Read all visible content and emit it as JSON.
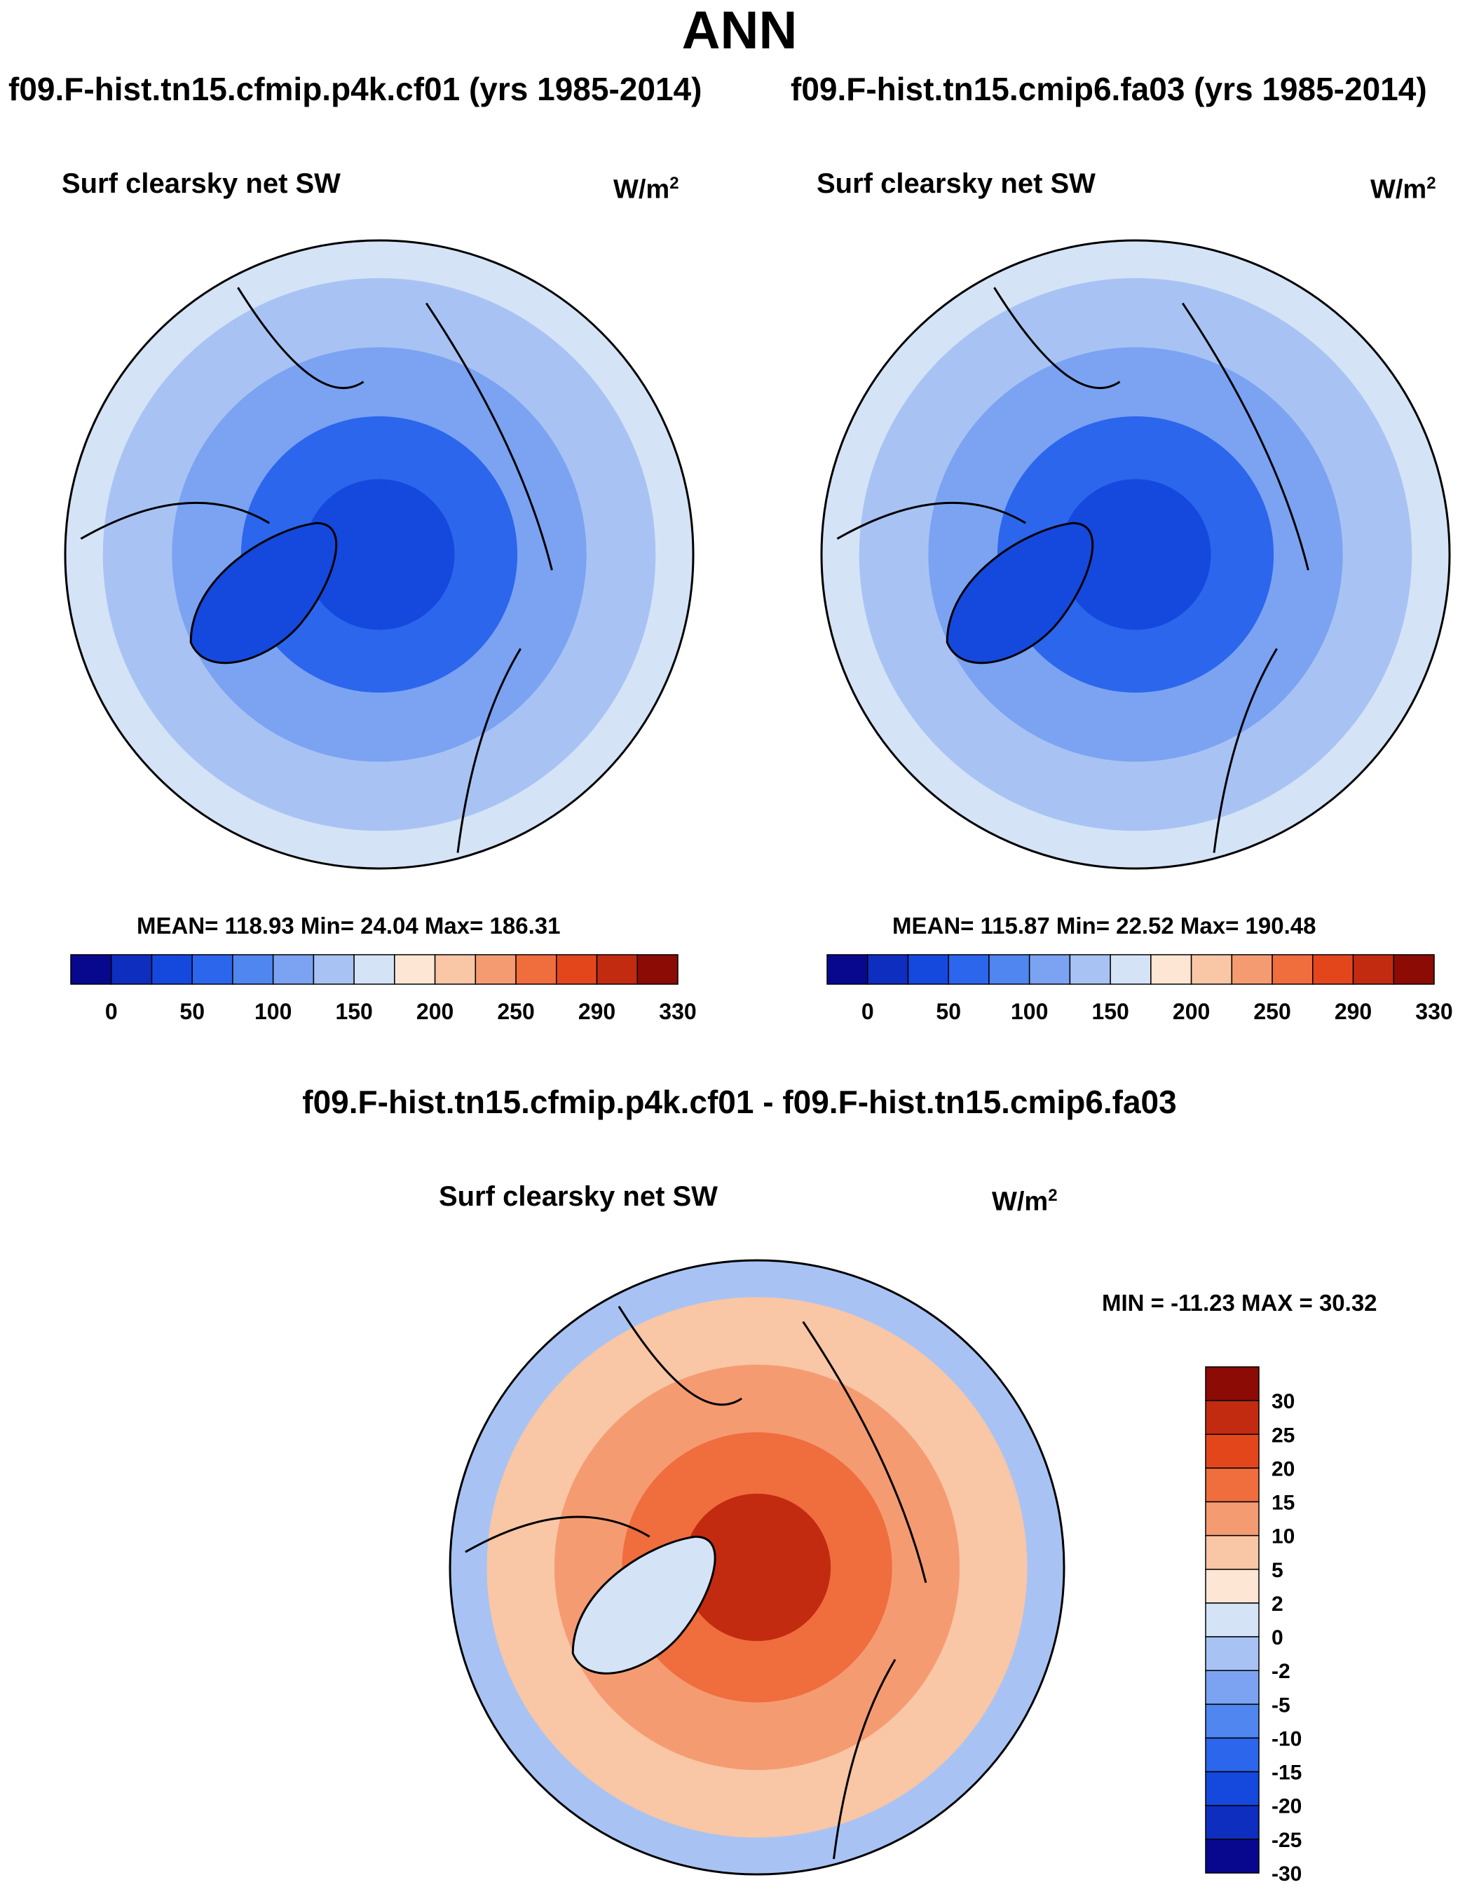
{
  "figure": {
    "title": "ANN",
    "diff_title": "f09.F-hist.tn15.cfmip.p4k.cf01 - f09.F-hist.tn15.cmip6.fa03"
  },
  "palettes": {
    "abs": [
      "#08088f",
      "#0e2ebf",
      "#1549dd",
      "#2c66ec",
      "#4f86f0",
      "#7ba3f2",
      "#a8c3f3",
      "#d4e3f6",
      "#fde6d3",
      "#f9c6a6",
      "#f59b72",
      "#f06d3e",
      "#e4461c",
      "#c22b10",
      "#8c0b05"
    ],
    "diff": [
      "#08088f",
      "#0e2ebf",
      "#1549dd",
      "#2c66ec",
      "#4f86f0",
      "#7ba3f2",
      "#a8c3f3",
      "#d4e3f6",
      "#fde6d3",
      "#f9c6a6",
      "#f59b72",
      "#f06d3e",
      "#e4461c",
      "#c22b10",
      "#8c0b05"
    ]
  },
  "chart_data": [
    {
      "type": "heatmap",
      "projection": "north polar stereographic",
      "case": "f09.F-hist.tn15.cfmip.p4k.cf01 (yrs 1985-2014)",
      "variable": "Surf clearsky net SW",
      "units_base": "W/m",
      "units_exp": "2",
      "stats": "MEAN= 118.93  Min=  24.04  Max= 186.31",
      "mean": 118.93,
      "min": 24.04,
      "max": 186.31,
      "colorbar_ticks": [
        "0",
        "50",
        "100",
        "150",
        "200",
        "250",
        "290",
        "330"
      ],
      "field": {
        "pole": 30,
        "ring1": 70,
        "ring2": 110,
        "ring3": 145,
        "outer": 170,
        "greenland": 45
      }
    },
    {
      "type": "heatmap",
      "projection": "north polar stereographic",
      "case": "f09.F-hist.tn15.cmip6.fa03 (yrs 1985-2014)",
      "variable": "Surf clearsky net SW",
      "units_base": "W/m",
      "units_exp": "2",
      "stats": "MEAN= 115.87  Min=  22.52  Max= 190.48",
      "mean": 115.87,
      "min": 22.52,
      "max": 190.48,
      "colorbar_ticks": [
        "0",
        "50",
        "100",
        "150",
        "200",
        "250",
        "290",
        "330"
      ],
      "field": {
        "pole": 25,
        "ring1": 65,
        "ring2": 105,
        "ring3": 140,
        "outer": 170,
        "greenland": 40
      }
    },
    {
      "type": "heatmap",
      "projection": "north polar stereographic",
      "case": "f09.F-hist.tn15.cfmip.p4k.cf01 - f09.F-hist.tn15.cmip6.fa03",
      "variable": "Surf clearsky net SW",
      "units_base": "W/m",
      "units_exp": "2",
      "stats": "MIN = -11.23 MAX =  30.32",
      "min": -11.23,
      "max": 30.32,
      "colorbar_ticks": [
        "30",
        "25",
        "20",
        "15",
        "10",
        "5",
        "2",
        "0",
        "-2",
        "-5",
        "-10",
        "-15",
        "-20",
        "-25",
        "-30"
      ],
      "field": {
        "pole": 22,
        "ring1": 14,
        "ring2": 6,
        "ring3": 3,
        "outer": -3,
        "greenland": -1
      }
    }
  ]
}
